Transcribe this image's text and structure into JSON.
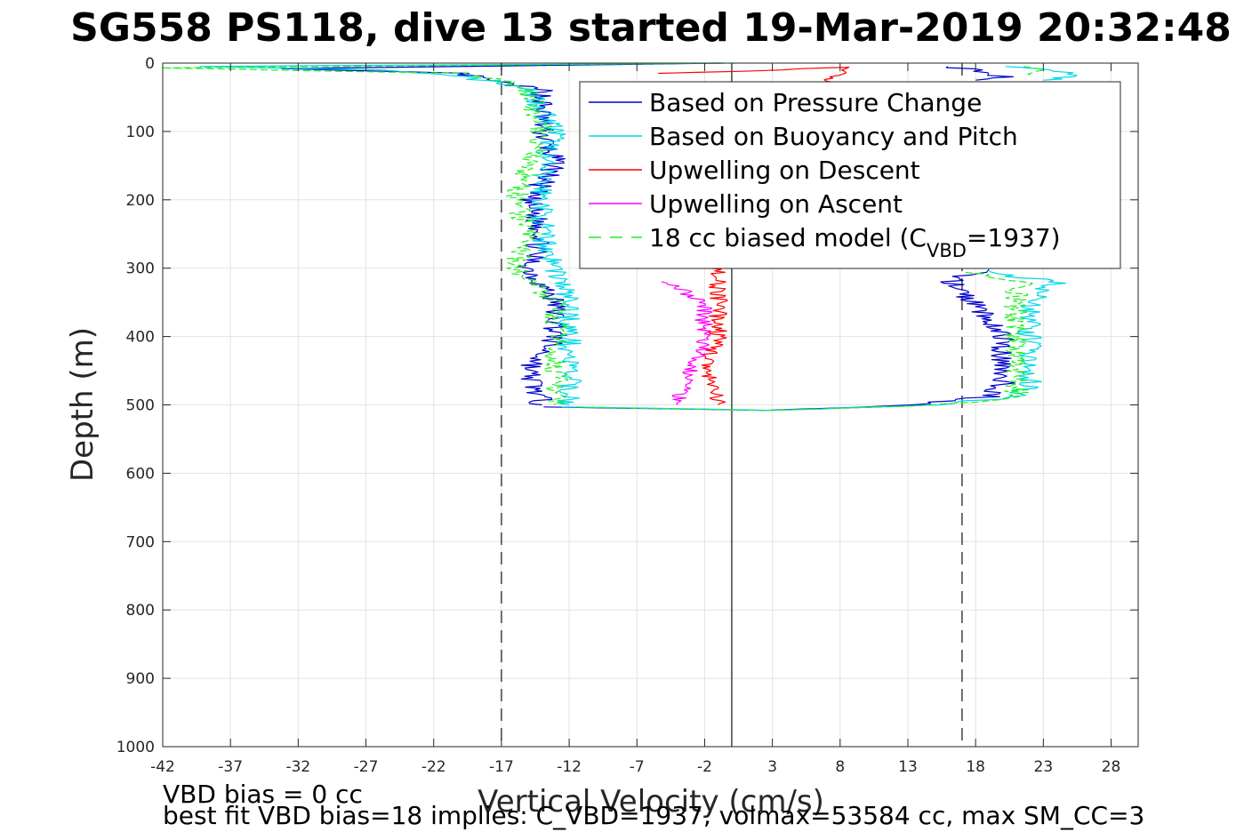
{
  "chart_data": {
    "type": "line",
    "title": "SG558 PS118, dive 13 started 19-Mar-2019 20:32:48",
    "xlabel": "Vertical Velocity (cm/s)",
    "ylabel": "Depth (m)",
    "xlim": [
      -42,
      30
    ],
    "ylim": [
      0,
      1000
    ],
    "y_reversed": true,
    "grid": true,
    "xticks": [
      -42,
      -37,
      -32,
      -27,
      -22,
      -17,
      -12,
      -7,
      -2,
      3,
      8,
      13,
      18,
      23,
      28
    ],
    "yticks": [
      0,
      100,
      200,
      300,
      400,
      500,
      600,
      700,
      800,
      900,
      1000
    ],
    "reference_lines": [
      {
        "x": -17,
        "style": "dashed",
        "color": "#404040"
      },
      {
        "x": 0,
        "style": "solid",
        "color": "#404040"
      },
      {
        "x": 17,
        "style": "dashed",
        "color": "#404040"
      }
    ],
    "legend_position": "top-right",
    "series": [
      {
        "name": "Based on Pressure Change",
        "color": "#0000cc",
        "style": "solid",
        "descent": [
          [
            0,
            0
          ],
          [
            -34,
            8
          ],
          [
            -20,
            15
          ],
          [
            -18,
            25
          ],
          [
            -14,
            40
          ],
          [
            -14,
            100
          ],
          [
            -13,
            150
          ],
          [
            -15,
            200
          ],
          [
            -14,
            250
          ],
          [
            -15,
            300
          ],
          [
            -13,
            350
          ],
          [
            -13,
            400
          ],
          [
            -15,
            450
          ],
          [
            -14,
            500
          ]
        ],
        "ascent": [
          [
            -13,
            503
          ],
          [
            3,
            508
          ],
          [
            13,
            500
          ],
          [
            19,
            488
          ],
          [
            20,
            470
          ],
          [
            20,
            400
          ],
          [
            18,
            350
          ],
          [
            16,
            320
          ],
          [
            17,
            310
          ],
          [
            19,
            302
          ]
        ],
        "top": [
          [
            16,
            5
          ],
          [
            18,
            10
          ],
          [
            20,
            20
          ],
          [
            18,
            25
          ]
        ]
      },
      {
        "name": "Based on Buoyancy and Pitch",
        "color": "#00d8e8",
        "style": "solid",
        "descent": [
          [
            0,
            0
          ],
          [
            -40,
            5
          ],
          [
            -25,
            10
          ],
          [
            -20,
            20
          ],
          [
            -15,
            35
          ],
          [
            -13,
            100
          ],
          [
            -14,
            150
          ],
          [
            -14,
            200
          ],
          [
            -14,
            250
          ],
          [
            -13,
            300
          ],
          [
            -12,
            350
          ],
          [
            -12,
            400
          ],
          [
            -12,
            450
          ],
          [
            -12,
            500
          ]
        ],
        "ascent": [
          [
            -12,
            503
          ],
          [
            3,
            508
          ],
          [
            15,
            500
          ],
          [
            21,
            488
          ],
          [
            22,
            470
          ],
          [
            22,
            400
          ],
          [
            22,
            350
          ],
          [
            23,
            330
          ],
          [
            24,
            320
          ],
          [
            21,
            312
          ],
          [
            19,
            305
          ]
        ],
        "top": [
          [
            21,
            5
          ],
          [
            24,
            10
          ],
          [
            25,
            20
          ],
          [
            23,
            25
          ]
        ]
      },
      {
        "name": "Upwelling on Descent",
        "color": "#ff0000",
        "style": "solid",
        "values": [
          [
            -5,
            15
          ],
          [
            1,
            12
          ],
          [
            8,
            6
          ],
          [
            -1,
            300
          ],
          [
            -1,
            350
          ],
          [
            -1,
            400
          ],
          [
            -2,
            450
          ],
          [
            -1,
            500
          ]
        ]
      },
      {
        "name": "Upwelling on Ascent",
        "color": "#ff00ff",
        "style": "solid",
        "values": [
          [
            -5,
            320
          ],
          [
            -2,
            350
          ],
          [
            -2,
            400
          ],
          [
            -3,
            450
          ],
          [
            -4,
            500
          ]
        ]
      },
      {
        "name": "18 cc biased model (C_VBD=1937)",
        "label_prefix": "18 cc biased model (C",
        "label_sub": "VBD",
        "label_suffix": "=1937)",
        "color": "#22ee22",
        "style": "dashed",
        "descent": [
          [
            0,
            0
          ],
          [
            -42,
            7
          ],
          [
            -20,
            15
          ],
          [
            -17,
            25
          ],
          [
            -15,
            40
          ],
          [
            -14,
            100
          ],
          [
            -15,
            150
          ],
          [
            -16,
            200
          ],
          [
            -15,
            250
          ],
          [
            -16,
            300
          ],
          [
            -13,
            350
          ],
          [
            -13,
            400
          ],
          [
            -13,
            450
          ],
          [
            -13,
            500
          ]
        ],
        "ascent": [
          [
            -12,
            503
          ],
          [
            3,
            508
          ],
          [
            15,
            500
          ],
          [
            21,
            490
          ],
          [
            21,
            470
          ],
          [
            21,
            400
          ],
          [
            21,
            350
          ],
          [
            21,
            330
          ],
          [
            22,
            320
          ],
          [
            19,
            312
          ],
          [
            17,
            305
          ]
        ],
        "top": [
          [
            22,
            5
          ],
          [
            23,
            12
          ],
          [
            22,
            20
          ]
        ]
      }
    ]
  },
  "footer": {
    "line1": "VBD bias = 0 cc",
    "line2": "best fit VBD bias=18 implies: C_VBD=1937, volmax=53584 cc, max SM_CC=3"
  }
}
